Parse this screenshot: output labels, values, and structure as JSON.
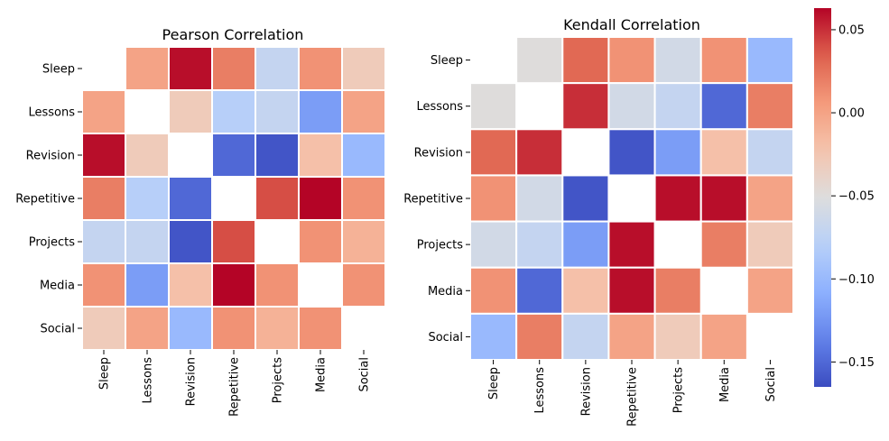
{
  "chart_data": [
    {
      "type": "heatmap",
      "title": "Pearson Correlation",
      "labels": [
        "Sleep",
        "Lessons",
        "Revision",
        "Repetitive",
        "Projects",
        "Media",
        "Social"
      ],
      "matrix": [
        [
          null,
          0.0,
          0.06,
          0.02,
          -0.07,
          0.01,
          -0.03
        ],
        [
          0.0,
          null,
          -0.03,
          -0.08,
          -0.07,
          -0.12,
          0.0
        ],
        [
          0.06,
          -0.03,
          null,
          -0.15,
          -0.16,
          -0.02,
          -0.1
        ],
        [
          0.02,
          -0.08,
          -0.15,
          null,
          0.04,
          0.065,
          0.01
        ],
        [
          -0.07,
          -0.07,
          -0.16,
          0.04,
          null,
          0.01,
          -0.01
        ],
        [
          0.01,
          -0.12,
          -0.02,
          0.065,
          0.01,
          null,
          0.01
        ],
        [
          -0.03,
          0.0,
          -0.1,
          0.01,
          -0.01,
          0.01,
          null
        ]
      ]
    },
    {
      "type": "heatmap",
      "title": "Kendall Correlation",
      "labels": [
        "Sleep",
        "Lessons",
        "Revision",
        "Repetitive",
        "Projects",
        "Media",
        "Social"
      ],
      "matrix": [
        [
          null,
          -0.05,
          0.03,
          0.01,
          -0.06,
          0.01,
          -0.1
        ],
        [
          -0.05,
          null,
          0.05,
          -0.06,
          -0.07,
          -0.15,
          0.02
        ],
        [
          0.03,
          0.05,
          null,
          -0.16,
          -0.12,
          -0.02,
          -0.07
        ],
        [
          0.01,
          -0.06,
          -0.16,
          null,
          0.06,
          0.06,
          0.0
        ],
        [
          -0.06,
          -0.07,
          -0.12,
          0.06,
          null,
          0.02,
          -0.03
        ],
        [
          0.01,
          -0.15,
          -0.02,
          0.06,
          0.02,
          null,
          0.0
        ],
        [
          -0.1,
          0.02,
          -0.07,
          0.0,
          -0.03,
          0.0,
          null
        ]
      ],
      "colorbar": {
        "min": -0.165,
        "max": 0.063,
        "ticks": [
          0.05,
          0.0,
          -0.05,
          -0.1,
          -0.15
        ],
        "tick_labels": [
          "0.05",
          "0.00",
          "−0.05",
          "−0.10",
          "−0.15"
        ],
        "colormap": "coolwarm"
      }
    }
  ]
}
